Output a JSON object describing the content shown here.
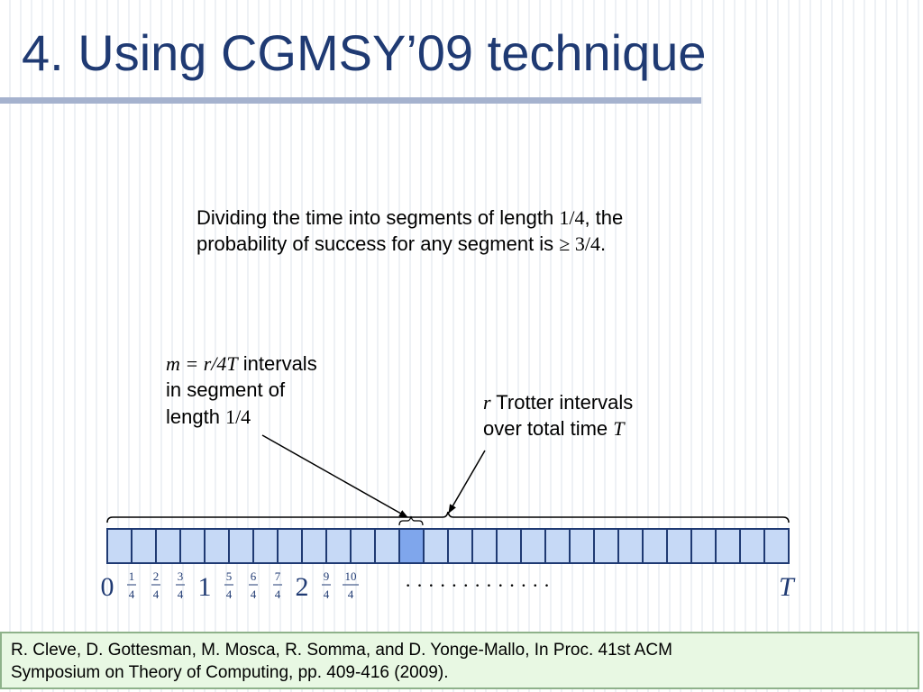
{
  "title": "4. Using CGMSY’09 technique",
  "segment_note": {
    "line1_pre": "Dividing the time into segments of length ",
    "line1_math": "1/4",
    "line1_post": ", the",
    "line2_pre": "probability of success for any segment is ",
    "line2_math": "≥ 3/4",
    "line2_post": "."
  },
  "interval_callout": {
    "math": "m = r/4T",
    "line1_post": " intervals",
    "line2": "in segment of",
    "line3_pre": "length ",
    "line3_math": "1/4"
  },
  "trotter_callout": {
    "var": "r",
    "line1_post": " Trotter intervals",
    "line2_pre": "over total time ",
    "line2_var": "T"
  },
  "timeline": {
    "cell_count": 28,
    "highlighted_cell": 12,
    "cell_fill": "#c6d9f6",
    "cell_stroke": "#1f3a73",
    "highlight_fill": "#7fa6ec",
    "integer_labels": [
      "0",
      "1",
      "2"
    ],
    "fraction_labels": [
      {
        "num": "1",
        "den": "4"
      },
      {
        "num": "2",
        "den": "4"
      },
      {
        "num": "3",
        "den": "4"
      },
      {
        "num": "5",
        "den": "4"
      },
      {
        "num": "6",
        "den": "4"
      },
      {
        "num": "7",
        "den": "4"
      },
      {
        "num": "9",
        "den": "4"
      },
      {
        "num": "10",
        "den": "4"
      }
    ],
    "ellipsis": "· · · · · · · · · · · · ·",
    "end_label": "T"
  },
  "citation": {
    "line1": "R. Cleve, D. Gottesman, M. Mosca, R. Somma, and D. Yonge-Mallo, In Proc. 41st ACM",
    "line2": "Symposium on Theory of Computing, pp. 409-416 (2009)."
  }
}
